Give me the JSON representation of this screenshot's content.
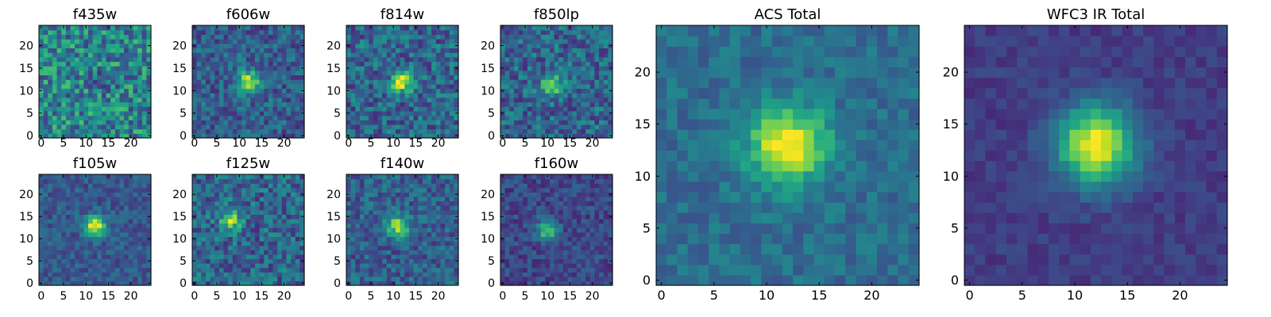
{
  "figure": {
    "tick_values": [
      0,
      5,
      10,
      15,
      20
    ],
    "axis_range": [
      -0.5,
      24.5
    ]
  },
  "chart_data": [
    {
      "type": "heatmap",
      "title": "f435w",
      "grid_size": 25,
      "colormap": "viridis",
      "xlim": [
        -0.5,
        24.5
      ],
      "ylim": [
        -0.5,
        24.5
      ],
      "grid": false,
      "peak": {
        "x": 13,
        "y": 13,
        "level": 0.35
      },
      "background_level": 0.45,
      "noise": 0.26
    },
    {
      "type": "heatmap",
      "title": "f606w",
      "grid_size": 25,
      "colormap": "viridis",
      "xlim": [
        -0.5,
        24.5
      ],
      "ylim": [
        -0.5,
        24.5
      ],
      "grid": false,
      "peak": {
        "x": 12,
        "y": 12,
        "level": 0.95
      },
      "background_level": 0.3,
      "noise": 0.17
    },
    {
      "type": "heatmap",
      "title": "f814w",
      "grid_size": 25,
      "colormap": "viridis",
      "xlim": [
        -0.5,
        24.5
      ],
      "ylim": [
        -0.5,
        24.5
      ],
      "grid": false,
      "peak": {
        "x": 12,
        "y": 12,
        "level": 0.98
      },
      "background_level": 0.33,
      "noise": 0.2
    },
    {
      "type": "heatmap",
      "title": "f850lp",
      "grid_size": 25,
      "colormap": "viridis",
      "xlim": [
        -0.5,
        24.5
      ],
      "ylim": [
        -0.5,
        24.5
      ],
      "grid": false,
      "peak": {
        "x": 11,
        "y": 11,
        "level": 0.85
      },
      "background_level": 0.33,
      "noise": 0.2
    },
    {
      "type": "heatmap",
      "title": "f105w",
      "grid_size": 25,
      "colormap": "viridis",
      "xlim": [
        -0.5,
        24.5
      ],
      "ylim": [
        -0.5,
        24.5
      ],
      "grid": false,
      "peak": {
        "x": 12,
        "y": 13,
        "level": 1.0
      },
      "background_level": 0.28,
      "noise": 0.12
    },
    {
      "type": "heatmap",
      "title": "f125w",
      "grid_size": 25,
      "colormap": "viridis",
      "xlim": [
        -0.5,
        24.5
      ],
      "ylim": [
        -0.5,
        24.5
      ],
      "grid": false,
      "peak": {
        "x": 8,
        "y": 14,
        "level": 0.85
      },
      "background_level": 0.33,
      "noise": 0.2
    },
    {
      "type": "heatmap",
      "title": "f140w",
      "grid_size": 25,
      "colormap": "viridis",
      "xlim": [
        -0.5,
        24.5
      ],
      "ylim": [
        -0.5,
        24.5
      ],
      "grid": false,
      "peak": {
        "x": 11,
        "y": 13,
        "level": 0.9
      },
      "background_level": 0.3,
      "noise": 0.16
    },
    {
      "type": "heatmap",
      "title": "f160w",
      "grid_size": 25,
      "colormap": "viridis",
      "xlim": [
        -0.5,
        24.5
      ],
      "ylim": [
        -0.5,
        24.5
      ],
      "grid": false,
      "peak": {
        "x": 10,
        "y": 12,
        "level": 0.75
      },
      "background_level": 0.22,
      "noise": 0.12
    },
    {
      "type": "heatmap",
      "title": "ACS Total",
      "grid_size": 25,
      "colormap": "viridis",
      "xlim": [
        -0.5,
        24.5
      ],
      "ylim": [
        -0.5,
        24.5
      ],
      "grid": false,
      "peak": {
        "x": 12,
        "y": 13,
        "level": 1.0
      },
      "background_level": 0.36,
      "noise": 0.1
    },
    {
      "type": "heatmap",
      "title": "WFC3 IR Total",
      "grid_size": 25,
      "colormap": "viridis",
      "xlim": [
        -0.5,
        24.5
      ],
      "ylim": [
        -0.5,
        24.5
      ],
      "grid": false,
      "peak": {
        "x": 12,
        "y": 13,
        "level": 1.0
      },
      "background_level": 0.18,
      "noise": 0.06
    }
  ]
}
